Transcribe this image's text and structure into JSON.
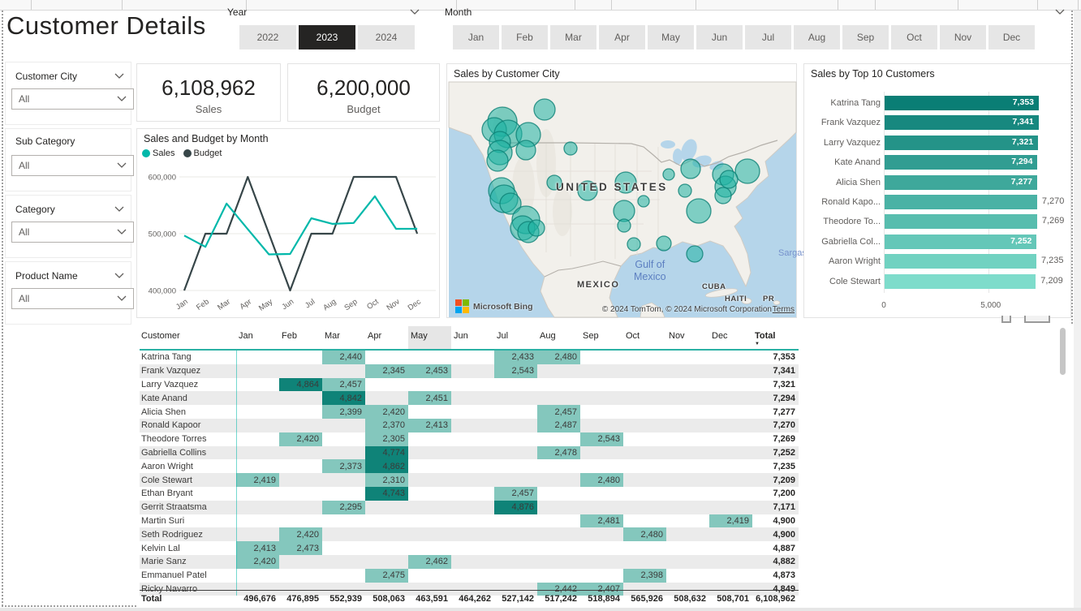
{
  "header": {
    "title": "Customer Details",
    "year_slicer": {
      "label": "Year",
      "options": [
        "2022",
        "2023",
        "2024"
      ],
      "selected": "2023"
    },
    "month_slicer": {
      "label": "Month",
      "options": [
        "Jan",
        "Feb",
        "Mar",
        "Apr",
        "May",
        "Jun",
        "Jul",
        "Aug",
        "Sep",
        "Oct",
        "Nov",
        "Dec"
      ],
      "selected": ""
    }
  },
  "filters": [
    {
      "label": "Customer City",
      "value": "All",
      "chevron": true
    },
    {
      "label": "Sub Category",
      "value": "All",
      "chevron": false
    },
    {
      "label": "Category",
      "value": "All",
      "chevron": true
    },
    {
      "label": "Product Name",
      "value": "All",
      "chevron": true
    }
  ],
  "kpis": [
    {
      "value": "6,108,962",
      "label": "Sales"
    },
    {
      "value": "6,200,000",
      "label": "Budget"
    }
  ],
  "colors": {
    "accent_teal": "#01B8AA",
    "budget_dark": "#374649",
    "selected_black": "#252423",
    "cell_low": "#84C7BD",
    "cell_high": "#0F8378"
  },
  "chart_data": [
    {
      "id": "sales-budget-by-month",
      "type": "line",
      "title": "Sales and Budget by Month",
      "categories": [
        "Jan",
        "Feb",
        "Mar",
        "Apr",
        "May",
        "Jun",
        "Jul",
        "Aug",
        "Sep",
        "Oct",
        "Nov",
        "Dec"
      ],
      "series": [
        {
          "name": "Sales",
          "color": "#01B8AA",
          "values": [
            496676,
            476895,
            552939,
            508063,
            463591,
            464262,
            527142,
            517242,
            518894,
            565926,
            508632,
            508701
          ]
        },
        {
          "name": "Budget",
          "color": "#374649",
          "values": [
            400000,
            500000,
            500000,
            600000,
            500000,
            400000,
            500000,
            500000,
            600000,
            600000,
            600000,
            500000
          ]
        }
      ],
      "ylim": [
        400000,
        600000
      ],
      "yticks": [
        {
          "value": 400000,
          "label": "400,000"
        },
        {
          "value": 500000,
          "label": "500,000"
        },
        {
          "value": 600000,
          "label": "600,000"
        }
      ],
      "legend_position": "top",
      "grid": true
    },
    {
      "id": "sales-by-customer-city",
      "type": "map-bubble",
      "title": "Sales by Customer City",
      "labels": {
        "country": "UNITED STATES",
        "mexico": "MEXICO",
        "gulf_line1": "Gulf of",
        "gulf_line2": "Mexico",
        "cuba": "CUBA",
        "haiti": "HAITI",
        "pr": "PR",
        "sargasso": "Sargas"
      },
      "provider": "Microsoft Bing",
      "attribution": "© 2024 TomTom, © 2024 Microsoft Corporation",
      "terms_label": "Terms",
      "bubbles": [
        [
          118,
          34,
          13
        ],
        [
          66,
          49,
          18
        ],
        [
          56,
          59,
          15
        ],
        [
          73,
          64,
          17
        ],
        [
          63,
          74,
          13
        ],
        [
          98,
          65,
          15
        ],
        [
          95,
          84,
          12
        ],
        [
          63,
          87,
          15
        ],
        [
          60,
          97,
          13
        ],
        [
          150,
          82,
          8
        ],
        [
          130,
          124,
          9
        ],
        [
          171,
          134,
          12
        ],
        [
          218,
          124,
          13
        ],
        [
          65,
          134,
          16
        ],
        [
          68,
          144,
          17
        ],
        [
          76,
          150,
          13
        ],
        [
          95,
          170,
          17
        ],
        [
          91,
          180,
          15
        ],
        [
          98,
          185,
          13
        ],
        [
          108,
          180,
          10
        ],
        [
          216,
          159,
          13
        ],
        [
          216,
          177,
          8
        ],
        [
          240,
          147,
          7
        ],
        [
          228,
          200,
          8
        ],
        [
          265,
          199,
          9
        ],
        [
          303,
          212,
          10
        ],
        [
          271,
          114,
          7
        ],
        [
          298,
          107,
          12
        ],
        [
          291,
          134,
          8
        ],
        [
          308,
          159,
          15
        ],
        [
          338,
          114,
          13
        ],
        [
          341,
          129,
          13
        ],
        [
          338,
          140,
          10
        ],
        [
          368,
          110,
          15
        ],
        [
          345,
          120,
          11
        ]
      ]
    },
    {
      "id": "sales-by-top-10-customers",
      "type": "bar",
      "title": "Sales by Top 10 Customers",
      "categories": [
        "Katrina Tang",
        "Frank Vazquez",
        "Larry Vazquez",
        "Kate Anand",
        "Alicia Shen",
        "Ronald Kapo...",
        "Theodore To...",
        "Gabriella Col...",
        "Aaron Wright",
        "Cole Stewart"
      ],
      "values": [
        7353,
        7341,
        7321,
        7294,
        7277,
        7270,
        7269,
        7252,
        7235,
        7209
      ],
      "value_labels": [
        "7,353",
        "7,341",
        "7,321",
        "7,294",
        "7,277",
        "7,270",
        "7,269",
        "7,252",
        "7,235",
        "7,209"
      ],
      "label_inside": [
        true,
        true,
        true,
        true,
        true,
        false,
        false,
        true,
        false,
        false
      ],
      "xticks": [
        {
          "value": 0,
          "label": "0"
        },
        {
          "value": 5000,
          "label": "5,000"
        }
      ],
      "bar_color_dark": "#0A7E75",
      "bar_color_light": "#7EDCCB"
    },
    {
      "id": "customer-month-matrix",
      "type": "table",
      "columns": [
        "Customer",
        "Jan",
        "Feb",
        "Mar",
        "Apr",
        "May",
        "Jun",
        "Jul",
        "Aug",
        "Sep",
        "Oct",
        "Nov",
        "Dec",
        "Total"
      ],
      "highlighted_column": "May",
      "sorted_column": "Total",
      "high_threshold": 4000,
      "rows": [
        {
          "name": "Katrina Tang",
          "values": [
            "",
            "",
            "2,440",
            "",
            "",
            "",
            "2,433",
            "2,480",
            "",
            "",
            "",
            ""
          ],
          "total": "7,353"
        },
        {
          "name": "Frank Vazquez",
          "values": [
            "",
            "",
            "",
            "2,345",
            "2,453",
            "",
            "2,543",
            "",
            "",
            "",
            "",
            ""
          ],
          "total": "7,341"
        },
        {
          "name": "Larry Vazquez",
          "values": [
            "",
            "4,864",
            "2,457",
            "",
            "",
            "",
            "",
            "",
            "",
            "",
            "",
            ""
          ],
          "total": "7,321"
        },
        {
          "name": "Kate Anand",
          "values": [
            "",
            "",
            "4,842",
            "",
            "2,451",
            "",
            "",
            "",
            "",
            "",
            "",
            ""
          ],
          "total": "7,294"
        },
        {
          "name": "Alicia Shen",
          "values": [
            "",
            "",
            "2,399",
            "2,420",
            "",
            "",
            "",
            "2,457",
            "",
            "",
            "",
            ""
          ],
          "total": "7,277"
        },
        {
          "name": "Ronald Kapoor",
          "values": [
            "",
            "",
            "",
            "2,370",
            "2,413",
            "",
            "",
            "2,487",
            "",
            "",
            "",
            ""
          ],
          "total": "7,270"
        },
        {
          "name": "Theodore Torres",
          "values": [
            "",
            "2,420",
            "",
            "2,305",
            "",
            "",
            "",
            "",
            "2,543",
            "",
            "",
            ""
          ],
          "total": "7,269"
        },
        {
          "name": "Gabriella Collins",
          "values": [
            "",
            "",
            "",
            "4,774",
            "",
            "",
            "",
            "2,478",
            "",
            "",
            "",
            ""
          ],
          "total": "7,252"
        },
        {
          "name": "Aaron Wright",
          "values": [
            "",
            "",
            "2,373",
            "4,862",
            "",
            "",
            "",
            "",
            "",
            "",
            "",
            ""
          ],
          "total": "7,235"
        },
        {
          "name": "Cole Stewart",
          "values": [
            "2,419",
            "",
            "",
            "2,310",
            "",
            "",
            "",
            "",
            "2,480",
            "",
            "",
            ""
          ],
          "total": "7,209"
        },
        {
          "name": "Ethan Bryant",
          "values": [
            "",
            "",
            "",
            "4,743",
            "",
            "",
            "2,457",
            "",
            "",
            "",
            "",
            ""
          ],
          "total": "7,200"
        },
        {
          "name": "Gerrit Straatsma",
          "values": [
            "",
            "",
            "2,295",
            "",
            "",
            "",
            "4,876",
            "",
            "",
            "",
            "",
            ""
          ],
          "total": "7,171"
        },
        {
          "name": "Martin Suri",
          "values": [
            "",
            "",
            "",
            "",
            "",
            "",
            "",
            "",
            "2,481",
            "",
            "",
            "2,419"
          ],
          "total": "4,900"
        },
        {
          "name": "Seth Rodriguez",
          "values": [
            "",
            "2,420",
            "",
            "",
            "",
            "",
            "",
            "",
            "",
            "2,480",
            "",
            ""
          ],
          "total": "4,900"
        },
        {
          "name": "Kelvin Lal",
          "values": [
            "2,413",
            "2,473",
            "",
            "",
            "",
            "",
            "",
            "",
            "",
            "",
            "",
            ""
          ],
          "total": "4,887"
        },
        {
          "name": "Marie Sanz",
          "values": [
            "2,420",
            "",
            "",
            "",
            "2,462",
            "",
            "",
            "",
            "",
            "",
            "",
            ""
          ],
          "total": "4,882"
        },
        {
          "name": "Emmanuel Patel",
          "values": [
            "",
            "",
            "",
            "2,475",
            "",
            "",
            "",
            "",
            "",
            "2,398",
            "",
            ""
          ],
          "total": "4,873"
        },
        {
          "name": "Ricky Navarro",
          "values": [
            "",
            "",
            "",
            "",
            "",
            "",
            "",
            "2,442",
            "2,407",
            "",
            "",
            ""
          ],
          "total": "4,849"
        }
      ],
      "total_row": {
        "name": "Total",
        "values": [
          "496,676",
          "476,895",
          "552,939",
          "508,063",
          "463,591",
          "464,262",
          "527,142",
          "517,242",
          "518,894",
          "565,926",
          "508,632",
          "508,701"
        ],
        "total": "6,108,962"
      }
    }
  ]
}
